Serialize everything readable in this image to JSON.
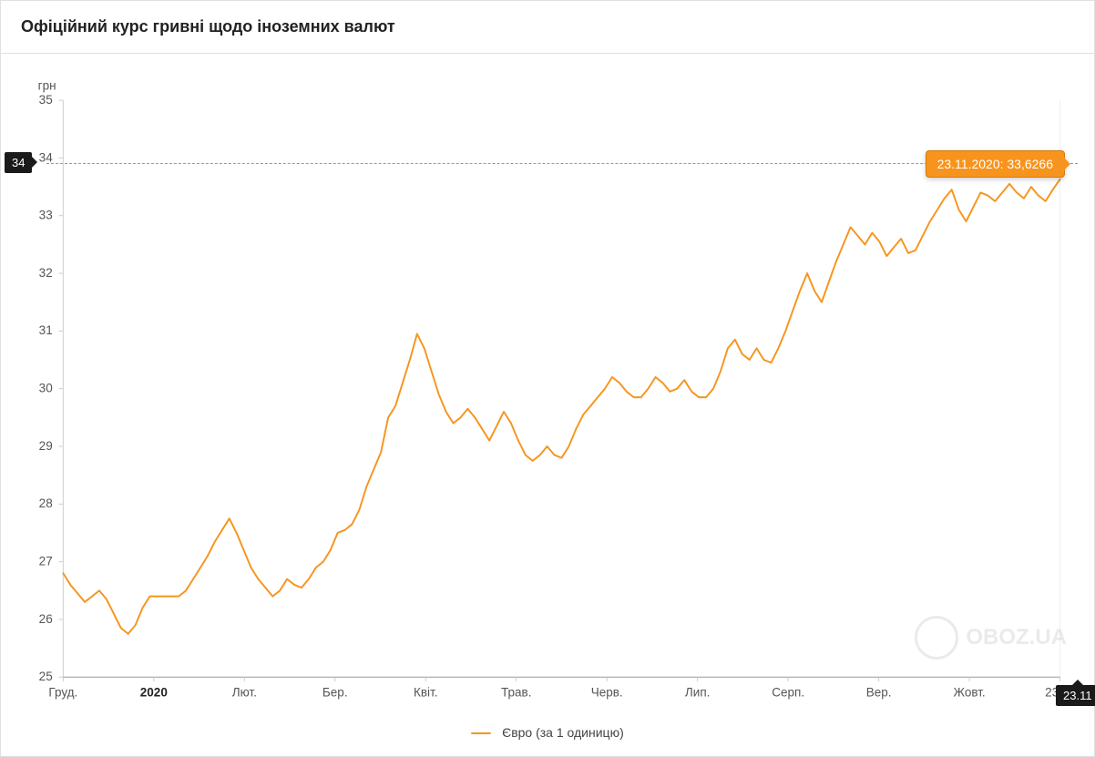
{
  "title": "Офіційний курс гривні щодо іноземних валют",
  "chart": {
    "type": "line",
    "y_label": "грн",
    "y_label_fontsize": 14,
    "y_label_color": "#555555",
    "ylim": [
      25,
      35
    ],
    "ytick_step": 1,
    "yticks": [
      25,
      26,
      27,
      28,
      29,
      30,
      31,
      32,
      33,
      34,
      35
    ],
    "xticks": [
      "Груд.",
      "2020",
      "Лют.",
      "Бер.",
      "Квіт.",
      "Трав.",
      "Черв.",
      "Лип.",
      "Серп.",
      "Вер.",
      "Жовт.",
      "23.11"
    ],
    "xtick_bold": [
      1
    ],
    "xtick_fontsize": 14,
    "tick_color": "#555555",
    "line_color": "#f7941d",
    "line_width": 2,
    "background_color": "#ffffff",
    "grid_color": "#ffffff",
    "axis_line_color": "#cccccc",
    "baseline_color": "#999999",
    "series": [
      26.8,
      26.6,
      26.45,
      26.3,
      26.4,
      26.5,
      26.35,
      26.1,
      25.85,
      25.75,
      25.9,
      26.2,
      26.4,
      26.4,
      26.4,
      26.4,
      26.4,
      26.5,
      26.7,
      26.9,
      27.1,
      27.35,
      27.55,
      27.75,
      27.5,
      27.2,
      26.9,
      26.7,
      26.55,
      26.4,
      26.5,
      26.7,
      26.6,
      26.55,
      26.7,
      26.9,
      27.0,
      27.2,
      27.5,
      27.55,
      27.65,
      27.9,
      28.3,
      28.6,
      28.9,
      29.5,
      29.7,
      30.1,
      30.5,
      30.95,
      30.7,
      30.3,
      29.9,
      29.6,
      29.4,
      29.5,
      29.65,
      29.5,
      29.3,
      29.1,
      29.35,
      29.6,
      29.4,
      29.1,
      28.85,
      28.75,
      28.85,
      29.0,
      28.85,
      28.8,
      29.0,
      29.3,
      29.55,
      29.7,
      29.85,
      30.0,
      30.2,
      30.1,
      29.95,
      29.85,
      29.85,
      30.0,
      30.2,
      30.1,
      29.95,
      30.0,
      30.15,
      29.95,
      29.85,
      29.85,
      30.0,
      30.3,
      30.7,
      30.85,
      30.6,
      30.5,
      30.7,
      30.5,
      30.45,
      30.7,
      31.0,
      31.35,
      31.7,
      32.0,
      31.7,
      31.5,
      31.85,
      32.2,
      32.5,
      32.8,
      32.65,
      32.5,
      32.7,
      32.55,
      32.3,
      32.45,
      32.6,
      32.35,
      32.4,
      32.65,
      32.9,
      33.1,
      33.3,
      33.45,
      33.1,
      32.9,
      33.15,
      33.4,
      33.35,
      33.25,
      33.4,
      33.55,
      33.4,
      33.3,
      33.5,
      33.35,
      33.25,
      33.45,
      33.63
    ],
    "highlight": {
      "y_value": 33.63,
      "y_badge_label": "34",
      "x_badge_label": "23.11",
      "tooltip_text": "23.11.2020: 33,6266"
    }
  },
  "legend": {
    "label": "Євро (за 1 одиницю)",
    "swatch_color": "#f7941d"
  },
  "watermark": {
    "text": "OBOZ.UA"
  }
}
